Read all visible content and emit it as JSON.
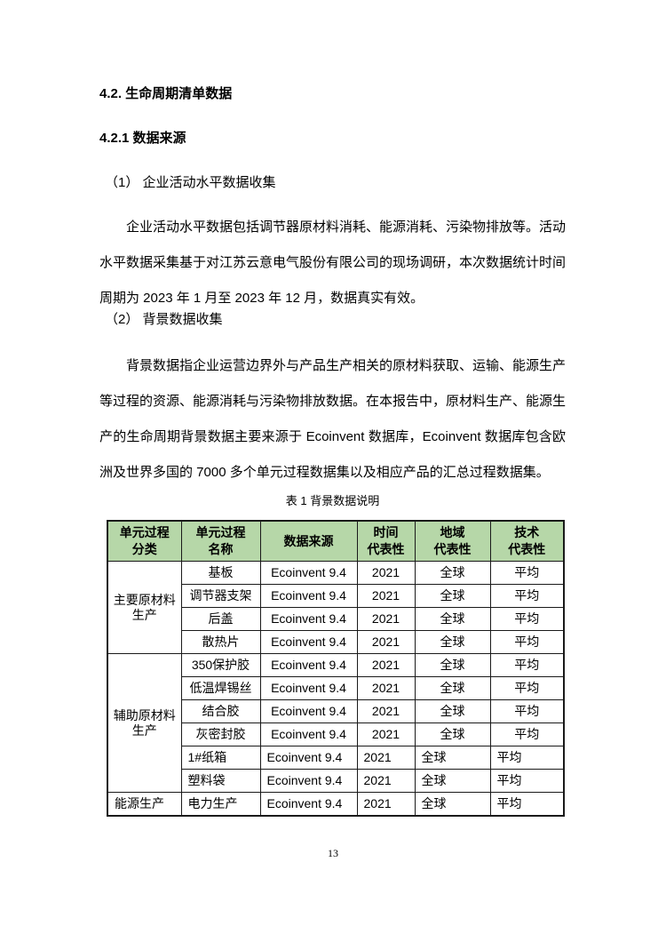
{
  "page": {
    "number": "13"
  },
  "headings": {
    "section": "4.2. 生命周期清单数据",
    "subsection": "4.2.1 数据来源",
    "item1": "（1） 企业活动水平数据收集",
    "item2": "（2） 背景数据收集"
  },
  "paragraphs": {
    "p1": "企业活动水平数据包括调节器原材料消耗、能源消耗、污染物排放等。活动水平数据采集基于对江苏云意电气股份有限公司的现场调研，本次数据统计时间周期为 2023 年 1 月至 2023 年 12 月，数据真实有效。",
    "p2": "背景数据指企业运营边界外与产品生产相关的原材料获取、运输、能源生产等过程的资源、能源消耗与污染物排放数据。在本报告中，原材料生产、能源生产的生命周期背景数据主要来源于 Ecoinvent 数据库，Ecoinvent 数据库包含欧洲及世界多国的 7000 多个单元过程数据集以及相应产品的汇总过程数据集。"
  },
  "table": {
    "caption": "表 1 背景数据说明",
    "header_bg": "#b6d7a8",
    "border_color": "#1a1a1a",
    "columns": [
      {
        "id": "category",
        "lines": [
          "单元过程",
          "分类"
        ]
      },
      {
        "id": "name",
        "lines": [
          "单元过程",
          "名称"
        ]
      },
      {
        "id": "source",
        "lines": [
          "数据来源"
        ]
      },
      {
        "id": "time",
        "lines": [
          "时间",
          "代表性"
        ]
      },
      {
        "id": "region",
        "lines": [
          "地域",
          "代表性"
        ]
      },
      {
        "id": "tech",
        "lines": [
          "技术",
          "代表性"
        ]
      }
    ],
    "groups": [
      {
        "category": "主要原材料生产",
        "category_align": "center",
        "rows": [
          {
            "name": "基板",
            "source": "Ecoinvent 9.4",
            "time": "2021",
            "region": "全球",
            "tech": "平均",
            "align": "center"
          },
          {
            "name": "调节器支架",
            "source": "Ecoinvent 9.4",
            "time": "2021",
            "region": "全球",
            "tech": "平均",
            "align": "center"
          },
          {
            "name": "后盖",
            "source": "Ecoinvent 9.4",
            "time": "2021",
            "region": "全球",
            "tech": "平均",
            "align": "center"
          },
          {
            "name": "散热片",
            "source": "Ecoinvent 9.4",
            "time": "2021",
            "region": "全球",
            "tech": "平均",
            "align": "center"
          }
        ]
      },
      {
        "category": "辅助原材料生产",
        "category_align": "center",
        "rows": [
          {
            "name": "350保护胶",
            "source": "Ecoinvent 9.4",
            "time": "2021",
            "region": "全球",
            "tech": "平均",
            "align": "center"
          },
          {
            "name": "低温焊锡丝",
            "source": "Ecoinvent 9.4",
            "time": "2021",
            "region": "全球",
            "tech": "平均",
            "align": "center"
          },
          {
            "name": "结合胶",
            "source": "Ecoinvent 9.4",
            "time": "2021",
            "region": "全球",
            "tech": "平均",
            "align": "center"
          },
          {
            "name": "灰密封胶",
            "source": "Ecoinvent 9.4",
            "time": "2021",
            "region": "全球",
            "tech": "平均",
            "align": "center"
          },
          {
            "name": "1#纸箱",
            "source": "Ecoinvent 9.4",
            "time": "2021",
            "region": "全球",
            "tech": "平均",
            "align": "left"
          },
          {
            "name": "塑料袋",
            "source": "Ecoinvent 9.4",
            "time": "2021",
            "region": "全球",
            "tech": "平均",
            "align": "left"
          }
        ]
      },
      {
        "category": "能源生产",
        "category_align": "left",
        "rows": [
          {
            "name": "电力生产",
            "source": "Ecoinvent 9.4",
            "time": "2021",
            "region": "全球",
            "tech": "平均",
            "align": "left"
          }
        ]
      }
    ]
  }
}
